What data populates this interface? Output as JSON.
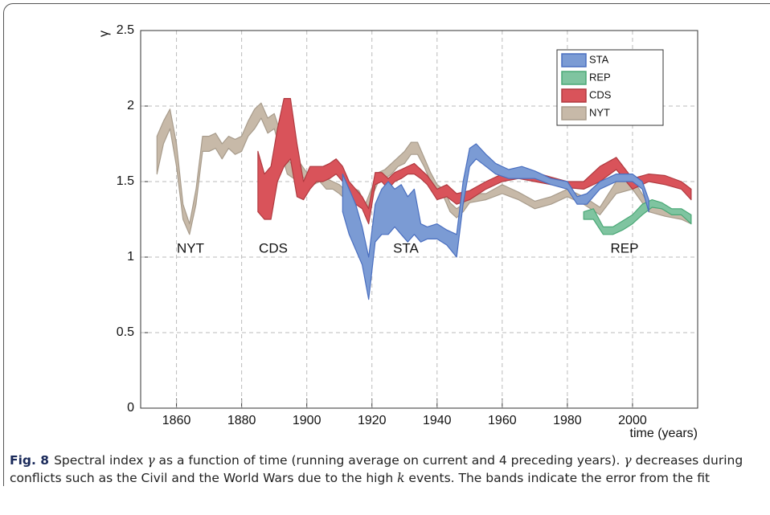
{
  "chart_data": {
    "type": "band",
    "y_label": "γ",
    "x_label": "time (years)",
    "xlim": [
      1849,
      2020
    ],
    "xticks": [
      1860,
      1880,
      1900,
      1920,
      1940,
      1960,
      1980,
      2000
    ],
    "ylim": [
      0,
      2.5
    ],
    "yticks": [
      0,
      0.5,
      1,
      1.5,
      2,
      2.5
    ],
    "grid": true,
    "legend": "upper right",
    "annotations": [
      "NYT",
      "CDS",
      "STA",
      "REP"
    ],
    "series": [
      {
        "name": "STA",
        "color": "#7b9bd4",
        "edge": "#4a6fc0",
        "x": [
          1911,
          1913,
          1915,
          1917,
          1919,
          1921,
          1923,
          1925,
          1927,
          1929,
          1931,
          1933,
          1935,
          1937,
          1940,
          1943,
          1946,
          1948,
          1950,
          1952,
          1955,
          1958,
          1962,
          1966,
          1970,
          1975,
          1980,
          1983,
          1986,
          1990,
          1995,
          2000,
          2003,
          2005
        ],
        "low": [
          1.3,
          1.15,
          1.05,
          0.95,
          0.72,
          1.1,
          1.15,
          1.15,
          1.2,
          1.15,
          1.1,
          1.15,
          1.1,
          1.12,
          1.12,
          1.08,
          1.0,
          1.35,
          1.6,
          1.65,
          1.6,
          1.55,
          1.52,
          1.52,
          1.52,
          1.48,
          1.45,
          1.35,
          1.35,
          1.45,
          1.5,
          1.5,
          1.45,
          1.3
        ],
        "high": [
          1.55,
          1.45,
          1.35,
          1.2,
          1.0,
          1.35,
          1.45,
          1.5,
          1.45,
          1.48,
          1.4,
          1.45,
          1.22,
          1.2,
          1.22,
          1.18,
          1.15,
          1.5,
          1.72,
          1.75,
          1.68,
          1.62,
          1.58,
          1.6,
          1.57,
          1.52,
          1.5,
          1.4,
          1.42,
          1.5,
          1.55,
          1.55,
          1.5,
          1.38
        ]
      },
      {
        "name": "REP",
        "color": "#7fc4a0",
        "edge": "#4aa876",
        "x": [
          1985,
          1988,
          1991,
          1994,
          1997,
          2000,
          2003,
          2006,
          2009,
          2012,
          2015,
          2018
        ],
        "low": [
          1.25,
          1.25,
          1.15,
          1.15,
          1.18,
          1.22,
          1.28,
          1.33,
          1.32,
          1.28,
          1.28,
          1.22
        ],
        "high": [
          1.3,
          1.32,
          1.2,
          1.2,
          1.24,
          1.28,
          1.35,
          1.38,
          1.36,
          1.32,
          1.32,
          1.28
        ]
      },
      {
        "name": "CDS",
        "color": "#d9535a",
        "edge": "#b03a40",
        "x": [
          1885,
          1887,
          1889,
          1891,
          1893,
          1895,
          1897,
          1899,
          1901,
          1903,
          1905,
          1907,
          1909,
          1911,
          1913,
          1915,
          1917,
          1919,
          1921,
          1923,
          1925,
          1927,
          1929,
          1931,
          1933,
          1935,
          1937,
          1940,
          1943,
          1946,
          1950,
          1955,
          1960,
          1965,
          1970,
          1975,
          1980,
          1985,
          1990,
          1995,
          2000,
          2005,
          2010,
          2015,
          2018
        ],
        "low": [
          1.3,
          1.25,
          1.25,
          1.5,
          1.6,
          1.65,
          1.4,
          1.38,
          1.45,
          1.5,
          1.5,
          1.52,
          1.55,
          1.5,
          1.4,
          1.35,
          1.32,
          1.22,
          1.48,
          1.5,
          1.45,
          1.5,
          1.52,
          1.55,
          1.55,
          1.52,
          1.48,
          1.38,
          1.4,
          1.35,
          1.38,
          1.45,
          1.5,
          1.52,
          1.5,
          1.48,
          1.46,
          1.45,
          1.5,
          1.58,
          1.45,
          1.5,
          1.48,
          1.45,
          1.38
        ],
        "high": [
          1.7,
          1.55,
          1.6,
          1.85,
          2.05,
          2.05,
          1.75,
          1.5,
          1.6,
          1.6,
          1.6,
          1.62,
          1.65,
          1.6,
          1.5,
          1.45,
          1.4,
          1.32,
          1.56,
          1.56,
          1.52,
          1.56,
          1.58,
          1.6,
          1.62,
          1.58,
          1.54,
          1.45,
          1.48,
          1.42,
          1.44,
          1.5,
          1.55,
          1.58,
          1.56,
          1.53,
          1.5,
          1.5,
          1.6,
          1.66,
          1.52,
          1.55,
          1.54,
          1.5,
          1.45
        ]
      },
      {
        "name": "NYT",
        "color": "#c7b9a8",
        "edge": "#a89c8c",
        "x": [
          1854,
          1856,
          1858,
          1860,
          1862,
          1864,
          1866,
          1868,
          1870,
          1872,
          1874,
          1876,
          1878,
          1880,
          1882,
          1884,
          1886,
          1888,
          1890,
          1892,
          1894,
          1896,
          1898,
          1900,
          1902,
          1904,
          1906,
          1908,
          1910,
          1912,
          1914,
          1916,
          1918,
          1920,
          1922,
          1924,
          1926,
          1928,
          1930,
          1932,
          1934,
          1936,
          1938,
          1940,
          1942,
          1944,
          1946,
          1948,
          1950,
          1955,
          1960,
          1965,
          1970,
          1975,
          1980,
          1985,
          1990,
          1995,
          2000,
          2005,
          2010,
          2015,
          2018
        ],
        "low": [
          1.55,
          1.75,
          1.85,
          1.6,
          1.25,
          1.15,
          1.35,
          1.7,
          1.7,
          1.72,
          1.65,
          1.72,
          1.68,
          1.7,
          1.8,
          1.85,
          1.92,
          1.82,
          1.85,
          1.7,
          1.55,
          1.52,
          1.55,
          1.5,
          1.48,
          1.5,
          1.45,
          1.45,
          1.42,
          1.38,
          1.4,
          1.38,
          1.28,
          1.4,
          1.5,
          1.52,
          1.55,
          1.6,
          1.62,
          1.68,
          1.68,
          1.6,
          1.5,
          1.42,
          1.4,
          1.3,
          1.26,
          1.3,
          1.36,
          1.38,
          1.42,
          1.38,
          1.32,
          1.35,
          1.4,
          1.35,
          1.28,
          1.42,
          1.45,
          1.3,
          1.27,
          1.25,
          1.22
        ],
        "high": [
          1.8,
          1.9,
          1.98,
          1.75,
          1.35,
          1.22,
          1.45,
          1.8,
          1.8,
          1.82,
          1.75,
          1.8,
          1.78,
          1.8,
          1.9,
          1.98,
          2.02,
          1.92,
          1.95,
          1.82,
          1.65,
          1.6,
          1.62,
          1.56,
          1.55,
          1.56,
          1.52,
          1.5,
          1.48,
          1.44,
          1.46,
          1.44,
          1.35,
          1.46,
          1.56,
          1.58,
          1.62,
          1.66,
          1.7,
          1.76,
          1.76,
          1.66,
          1.56,
          1.48,
          1.45,
          1.36,
          1.32,
          1.35,
          1.42,
          1.42,
          1.48,
          1.43,
          1.37,
          1.4,
          1.45,
          1.4,
          1.33,
          1.5,
          1.52,
          1.35,
          1.31,
          1.3,
          1.28
        ]
      }
    ]
  },
  "caption": {
    "label": "Fig. 8",
    "parts": [
      "Spectral index ",
      "γ",
      " as a function of time (running average on current and 4 preceding years). ",
      "γ",
      " decreases during conflicts such as the Civil and the World Wars due to the high ",
      "k",
      " events. The bands indicate the error from the fit"
    ]
  }
}
